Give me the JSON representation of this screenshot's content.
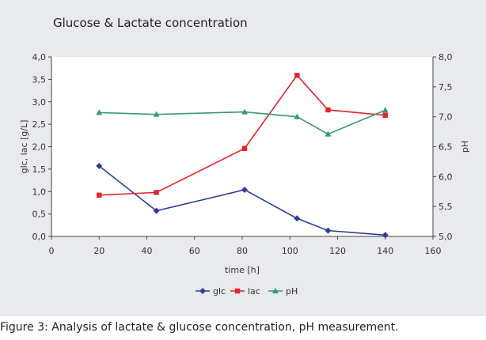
{
  "chart_data": {
    "type": "line",
    "title": "Glucose & Lactate concentration",
    "xlabel": "time [h]",
    "ylabel": "glc, lac [g/L]",
    "y2label": "pH",
    "xlim": [
      0,
      160
    ],
    "ylim": [
      0,
      4.0
    ],
    "y2lim": [
      5.0,
      8.0
    ],
    "x_ticks": [
      0,
      20,
      40,
      60,
      80,
      100,
      120,
      140,
      160
    ],
    "x_tick_labels": [
      "0",
      "20",
      "40",
      "60",
      "80",
      "100",
      "120",
      "140",
      "160"
    ],
    "y_ticks": [
      0,
      0.5,
      1.0,
      1.5,
      2.0,
      2.5,
      3.0,
      3.5,
      4.0
    ],
    "y_tick_labels": [
      "0,0",
      "0,5",
      "1,0",
      "1,5",
      "2,0",
      "2,5",
      "3,0",
      "3,5",
      "4,0"
    ],
    "y2_ticks": [
      5.0,
      5.5,
      6.0,
      6.5,
      7.0,
      7.5,
      8.0
    ],
    "y2_tick_labels": [
      "5,0",
      "5,5",
      "6,0",
      "6,5",
      "7,0",
      "7,5",
      "8,0"
    ],
    "legend_position": "bottom",
    "series": [
      {
        "name": "glc",
        "axis": "left",
        "color": "#2e3d99",
        "marker": "diamond",
        "points": [
          [
            20,
            1.57
          ],
          [
            44,
            0.57
          ],
          [
            81,
            1.04
          ],
          [
            103,
            0.4
          ],
          [
            116,
            0.13
          ],
          [
            140,
            0.03
          ]
        ]
      },
      {
        "name": "lac",
        "axis": "left",
        "color": "#e0262d",
        "marker": "square",
        "points": [
          [
            20,
            0.92
          ],
          [
            44,
            0.98
          ],
          [
            81,
            1.96
          ],
          [
            103,
            3.59
          ],
          [
            116,
            2.82
          ],
          [
            140,
            2.7
          ]
        ]
      },
      {
        "name": "pH",
        "axis": "right",
        "color": "#3a9a6e",
        "marker": "triangle",
        "points": [
          [
            20,
            7.07
          ],
          [
            44,
            7.04
          ],
          [
            81,
            7.08
          ],
          [
            103,
            7.0
          ],
          [
            116,
            6.71
          ],
          [
            140,
            7.11
          ]
        ]
      }
    ]
  },
  "caption": "Figure 3: Analysis of lactate & glucose concentration, pH measurement."
}
